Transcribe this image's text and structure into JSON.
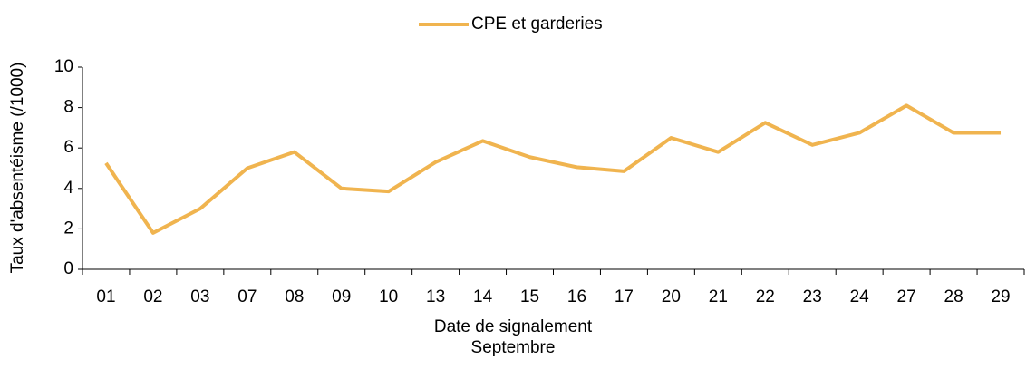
{
  "chart_data": {
    "type": "line",
    "ylabel": "Taux d'absentéisme (/1000)",
    "xlabel_lines": [
      "Date de signalement",
      "Septembre"
    ],
    "categories": [
      "01",
      "02",
      "03",
      "07",
      "08",
      "09",
      "10",
      "13",
      "14",
      "15",
      "16",
      "17",
      "20",
      "21",
      "22",
      "23",
      "24",
      "27",
      "28",
      "29"
    ],
    "series": [
      {
        "name": "CPE et garderies",
        "color": "#f0b44f",
        "values": [
          5.25,
          1.8,
          3.0,
          5.0,
          5.8,
          4.0,
          3.85,
          5.3,
          6.35,
          5.55,
          5.05,
          4.85,
          6.5,
          5.8,
          7.25,
          6.15,
          6.75,
          8.1,
          6.75,
          6.75
        ]
      }
    ],
    "ylim": [
      0,
      10
    ],
    "yticks": [
      0,
      2,
      4,
      6,
      8,
      10
    ],
    "grid": false,
    "legend": "top"
  }
}
